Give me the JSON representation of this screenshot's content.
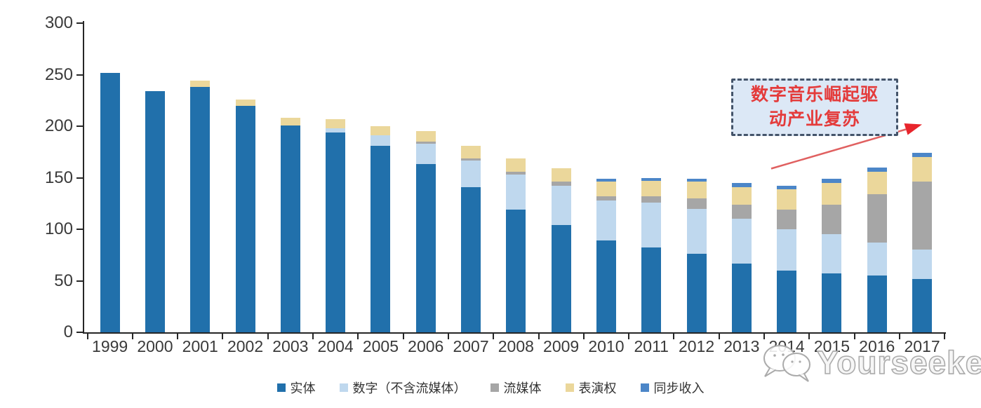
{
  "chart_data": {
    "type": "bar",
    "stacked": true,
    "title": "",
    "xlabel": "",
    "ylabel": "",
    "categories": [
      "1999",
      "2000",
      "2001",
      "2002",
      "2003",
      "2004",
      "2005",
      "2006",
      "2007",
      "2008",
      "2009",
      "2010",
      "2011",
      "2012",
      "2013",
      "2014",
      "2015",
      "2016",
      "2017"
    ],
    "series": [
      {
        "name": "实体",
        "color": "#2170AB",
        "values": [
          252,
          234,
          238,
          220,
          201,
          194,
          181,
          163,
          141,
          119,
          104,
          89,
          82,
          76,
          67,
          60,
          57,
          55,
          52
        ]
      },
      {
        "name": "数字（不含流媒体）",
        "color": "#BFD8EE",
        "values": [
          0,
          0,
          0,
          0,
          0,
          4,
          10,
          20,
          26,
          34,
          38,
          39,
          44,
          44,
          43,
          40,
          38,
          32,
          28
        ]
      },
      {
        "name": "流媒体",
        "color": "#A6A6A6",
        "values": [
          0,
          0,
          0,
          0,
          0,
          0,
          0,
          2,
          2,
          3,
          4,
          4,
          6,
          10,
          14,
          19,
          29,
          47,
          66
        ]
      },
      {
        "name": "表演权",
        "color": "#EBD79B",
        "values": [
          0,
          0,
          6,
          6,
          7,
          9,
          9,
          10,
          12,
          13,
          13,
          14,
          15,
          16,
          17,
          20,
          21,
          22,
          24
        ]
      },
      {
        "name": "同步收入",
        "color": "#4C86C8",
        "values": [
          0,
          0,
          0,
          0,
          0,
          0,
          0,
          0,
          0,
          0,
          0,
          3,
          3,
          3,
          4,
          3,
          4,
          4,
          4
        ]
      }
    ],
    "ylim": [
      0,
      300
    ],
    "yticks": [
      0,
      50,
      100,
      150,
      200,
      250,
      300
    ],
    "grid": false,
    "legend_position": "bottom",
    "axis_color": "#262626",
    "tick_label_color": "#3a3a3a"
  },
  "annotation": {
    "line1": "数字音乐崛起驱",
    "line2": "动产业复苏",
    "text_color": "#E43B3B",
    "fill": "#DCE8F6",
    "border_color": "#44546A",
    "arrow_line_color": "#E06060",
    "arrow_head_color": "#E8252C"
  },
  "watermark": {
    "text": "Yourseeker",
    "icon": "wechat-chat-bubbles-icon",
    "color": "#ABABAB"
  }
}
